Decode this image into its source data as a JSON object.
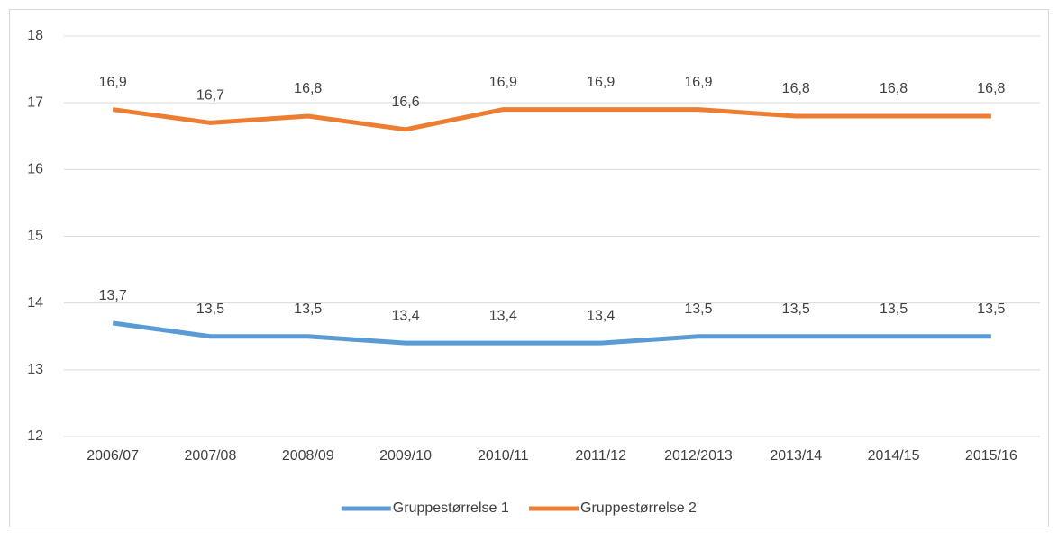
{
  "chart_data": {
    "type": "line",
    "categories": [
      "2006/07",
      "2007/08",
      "2008/09",
      "2009/10",
      "2010/11",
      "2011/12",
      "2012/2013",
      "2013/14",
      "2014/15",
      "2015/16"
    ],
    "series": [
      {
        "name": "Gruppestørrelse 1",
        "color": "#5b9bd5",
        "values": [
          13.7,
          13.5,
          13.5,
          13.4,
          13.4,
          13.4,
          13.5,
          13.5,
          13.5,
          13.5
        ],
        "value_labels": [
          "13,7",
          "13,5",
          "13,5",
          "13,4",
          "13,4",
          "13,4",
          "13,5",
          "13,5",
          "13,5",
          "13,5"
        ]
      },
      {
        "name": "Gruppestørrelse 2",
        "color": "#ed7d31",
        "values": [
          16.9,
          16.7,
          16.8,
          16.6,
          16.9,
          16.9,
          16.9,
          16.8,
          16.8,
          16.8
        ],
        "value_labels": [
          "16,9",
          "16,7",
          "16,8",
          "16,6",
          "16,9",
          "16,9",
          "16,9",
          "16,8",
          "16,8",
          "16,8"
        ]
      }
    ],
    "ylim": [
      12,
      18
    ],
    "yticks": [
      12,
      13,
      14,
      15,
      16,
      17,
      18
    ],
    "grid": true,
    "legend": "bottom"
  }
}
